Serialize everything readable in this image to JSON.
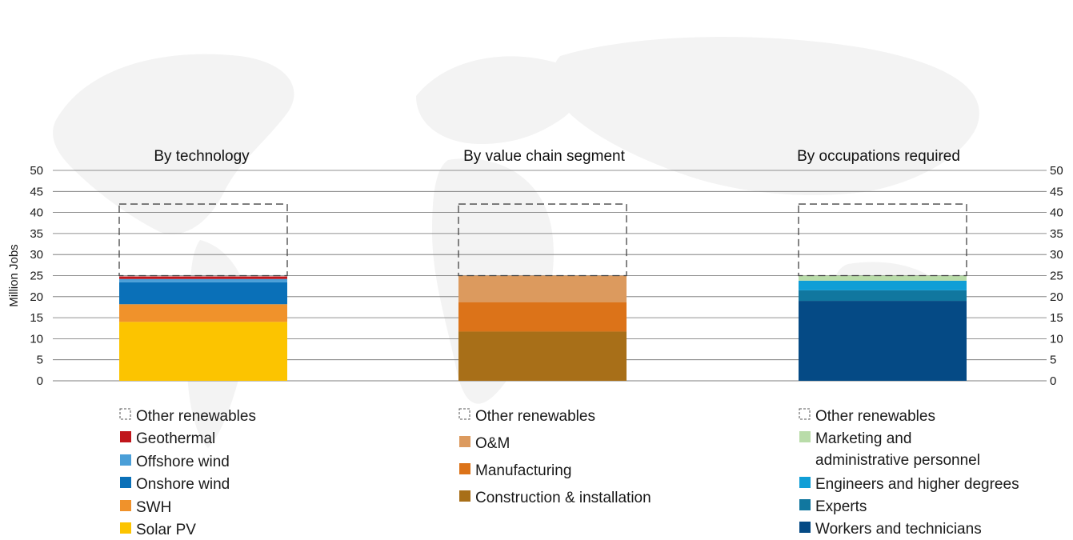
{
  "chart_data": {
    "type": "bar",
    "ylabel": "Million Jobs",
    "ylim": [
      0,
      50
    ],
    "yticks": [
      0,
      5,
      10,
      15,
      20,
      25,
      30,
      35,
      40,
      45,
      50
    ],
    "grid": true,
    "panels": [
      {
        "title": "By technology",
        "other_renewables": {
          "label": "Other renewables",
          "range": [
            25,
            42
          ]
        },
        "segments": [
          {
            "name": "Solar PV",
            "value": 14,
            "color": "#fcc400"
          },
          {
            "name": "SWH",
            "value": 4.2,
            "color": "#f0922b"
          },
          {
            "name": "Onshore wind",
            "value": 5.2,
            "color": "#0a70b8"
          },
          {
            "name": "Offshore wind",
            "value": 0.8,
            "color": "#4a9fd8"
          },
          {
            "name": "Geothermal",
            "value": 0.6,
            "color": "#c0161b"
          }
        ],
        "legend": [
          {
            "label": "Other renewables",
            "type": "dashed"
          },
          {
            "label": "Geothermal",
            "color": "#c0161b"
          },
          {
            "label": "Offshore wind",
            "color": "#4a9fd8"
          },
          {
            "label": "Onshore wind",
            "color": "#0a70b8"
          },
          {
            "label": "SWH",
            "color": "#f0922b"
          },
          {
            "label": "Solar PV",
            "color": "#fcc400"
          }
        ]
      },
      {
        "title": "By value chain segment",
        "other_renewables": {
          "label": "Other renewables",
          "range": [
            25,
            42
          ]
        },
        "segments": [
          {
            "name": "Construction & installation",
            "value": 11.7,
            "color": "#a86f18"
          },
          {
            "name": "Manufacturing",
            "value": 7,
            "color": "#dc7319"
          },
          {
            "name": "O&M",
            "value": 6.3,
            "color": "#dc9a5e"
          }
        ],
        "legend": [
          {
            "label": "Other renewables",
            "type": "dashed"
          },
          {
            "label": "O&M",
            "color": "#dc9a5e"
          },
          {
            "label": "Manufacturing",
            "color": "#dc7319"
          },
          {
            "label": "Construction & installation",
            "color": "#a86f18"
          }
        ]
      },
      {
        "title": "By occupations required",
        "other_renewables": {
          "label": "Other renewables",
          "range": [
            25,
            42
          ]
        },
        "segments": [
          {
            "name": "Workers and technicians",
            "value": 19,
            "color": "#054a85"
          },
          {
            "name": "Experts",
            "value": 2.5,
            "color": "#11779f"
          },
          {
            "name": "Engineers and higher degrees",
            "value": 2.3,
            "color": "#109ed6"
          },
          {
            "name": "Marketing and administrative personnel",
            "value": 1.2,
            "color": "#b9dca9"
          }
        ],
        "legend": [
          {
            "label": "Other renewables",
            "type": "dashed"
          },
          {
            "label": [
              "Marketing and",
              "administrative personnel"
            ],
            "color": "#b9dca9"
          },
          {
            "label": "Engineers and higher degrees",
            "color": "#109ed6"
          },
          {
            "label": "Experts",
            "color": "#11779f"
          },
          {
            "label": "Workers and technicians",
            "color": "#054a85"
          }
        ]
      }
    ]
  }
}
